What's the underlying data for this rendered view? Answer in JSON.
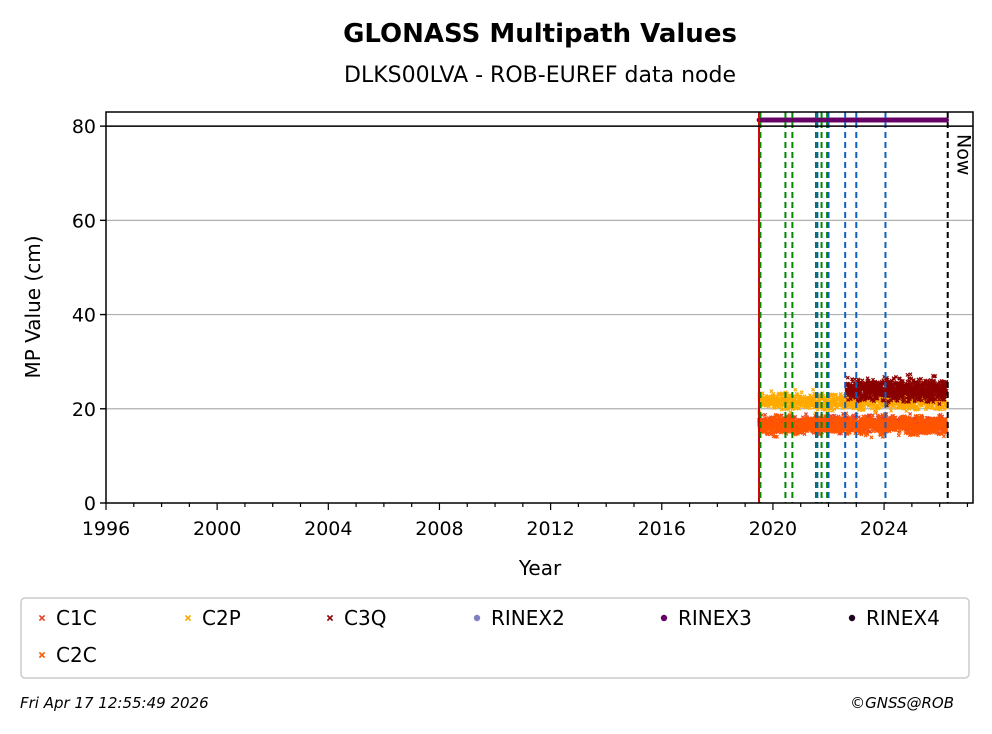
{
  "chart_data": {
    "type": "scatter",
    "title": "GLONASS Multipath Values",
    "subtitle": "DLKS00LVA - ROB-EUREF data node",
    "xlabel": "Year",
    "ylabel": "MP Value (cm)",
    "xlim": [
      1996,
      2027.2
    ],
    "ylim": [
      0,
      83
    ],
    "x_ticks": [
      1996,
      2000,
      2004,
      2008,
      2012,
      2016,
      2020,
      2024
    ],
    "y_ticks": [
      0,
      20,
      40,
      60,
      80
    ],
    "grid": "y",
    "threshold_line": 80,
    "now_label": "Now",
    "now_year": 2026.29,
    "legend": "bottom",
    "series": [
      {
        "name": "C1C",
        "color": "#e8412a",
        "marker": "x",
        "x_range": [
          2019.5,
          2026.25
        ],
        "mean": 16.8,
        "spread": 1.2
      },
      {
        "name": "C2C",
        "color": "#ff5500",
        "marker": "x",
        "x_range": [
          2019.5,
          2026.25
        ],
        "mean": 16.5,
        "spread": 1.4
      },
      {
        "name": "C2P",
        "color": "#ffaa00",
        "marker": "x",
        "x_range": [
          2019.5,
          2026.25
        ],
        "mean": 21.5,
        "spread": 1.3
      },
      {
        "name": "C3Q",
        "color": "#8b0000",
        "marker": "x",
        "x_range": [
          2022.65,
          2026.25
        ],
        "mean": 24.0,
        "spread": 1.6
      },
      {
        "name": "RINEX2",
        "color": "#8080c0",
        "marker": "o",
        "x_range": [],
        "mean": null,
        "spread": null
      },
      {
        "name": "RINEX3",
        "color": "#660066",
        "marker": "o",
        "x_range": [
          2019.5,
          2026.25
        ],
        "mean": 81.3,
        "spread": 0
      },
      {
        "name": "RINEX4",
        "color": "#220022",
        "marker": "o",
        "x_range": [],
        "mean": null,
        "spread": null
      }
    ],
    "vlines": [
      {
        "x": 2019.5,
        "color": "#cc0000",
        "style": "solid"
      },
      {
        "x": 2019.55,
        "color": "#008800",
        "style": "dashed"
      },
      {
        "x": 2020.45,
        "color": "#008800",
        "style": "dashed"
      },
      {
        "x": 2020.7,
        "color": "#008800",
        "style": "dashed"
      },
      {
        "x": 2021.55,
        "color": "#008800",
        "style": "dashed"
      },
      {
        "x": 2021.75,
        "color": "#008800",
        "style": "dashed"
      },
      {
        "x": 2021.95,
        "color": "#008800",
        "style": "dashed"
      },
      {
        "x": 2021.6,
        "color": "#1060c0",
        "style": "dashed"
      },
      {
        "x": 2022.0,
        "color": "#1060c0",
        "style": "dashed"
      },
      {
        "x": 2022.6,
        "color": "#1060c0",
        "style": "dashed"
      },
      {
        "x": 2023.0,
        "color": "#1060c0",
        "style": "dashed"
      },
      {
        "x": 2024.05,
        "color": "#1060c0",
        "style": "dashed"
      },
      {
        "x": 2026.29,
        "color": "#000000",
        "style": "dashed"
      }
    ]
  },
  "footer": {
    "timestamp": "Fri Apr 17 12:55:49 2026",
    "copyright": "©GNSS@ROB"
  }
}
